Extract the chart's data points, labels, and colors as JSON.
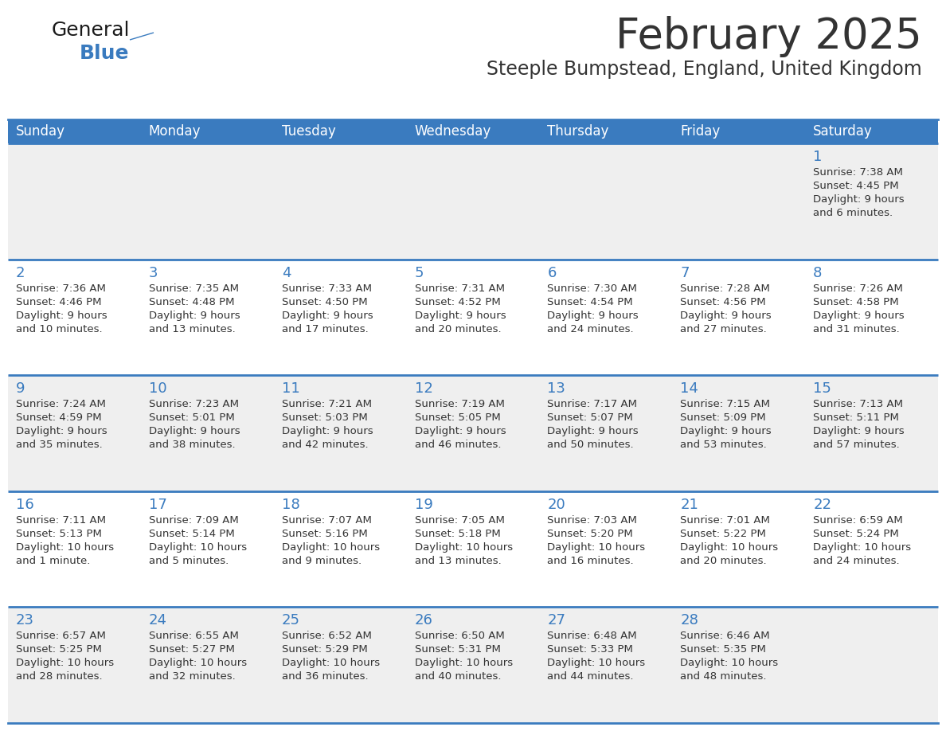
{
  "title": "February 2025",
  "subtitle": "Steeple Bumpstead, England, United Kingdom",
  "header_bg": "#3a7bbf",
  "header_text": "#ffffff",
  "cell_bg_odd": "#efefef",
  "cell_bg_even": "#ffffff",
  "separator_color": "#3a7bbf",
  "day_number_color": "#3a7bbf",
  "text_color": "#333333",
  "days_of_week": [
    "Sunday",
    "Monday",
    "Tuesday",
    "Wednesday",
    "Thursday",
    "Friday",
    "Saturday"
  ],
  "weeks": [
    [
      null,
      null,
      null,
      null,
      null,
      null,
      1
    ],
    [
      2,
      3,
      4,
      5,
      6,
      7,
      8
    ],
    [
      9,
      10,
      11,
      12,
      13,
      14,
      15
    ],
    [
      16,
      17,
      18,
      19,
      20,
      21,
      22
    ],
    [
      23,
      24,
      25,
      26,
      27,
      28,
      null
    ]
  ],
  "cell_data": {
    "1": {
      "sunrise": "7:38 AM",
      "sunset": "4:45 PM",
      "daylight": "9 hours\nand 6 minutes."
    },
    "2": {
      "sunrise": "7:36 AM",
      "sunset": "4:46 PM",
      "daylight": "9 hours\nand 10 minutes."
    },
    "3": {
      "sunrise": "7:35 AM",
      "sunset": "4:48 PM",
      "daylight": "9 hours\nand 13 minutes."
    },
    "4": {
      "sunrise": "7:33 AM",
      "sunset": "4:50 PM",
      "daylight": "9 hours\nand 17 minutes."
    },
    "5": {
      "sunrise": "7:31 AM",
      "sunset": "4:52 PM",
      "daylight": "9 hours\nand 20 minutes."
    },
    "6": {
      "sunrise": "7:30 AM",
      "sunset": "4:54 PM",
      "daylight": "9 hours\nand 24 minutes."
    },
    "7": {
      "sunrise": "7:28 AM",
      "sunset": "4:56 PM",
      "daylight": "9 hours\nand 27 minutes."
    },
    "8": {
      "sunrise": "7:26 AM",
      "sunset": "4:58 PM",
      "daylight": "9 hours\nand 31 minutes."
    },
    "9": {
      "sunrise": "7:24 AM",
      "sunset": "4:59 PM",
      "daylight": "9 hours\nand 35 minutes."
    },
    "10": {
      "sunrise": "7:23 AM",
      "sunset": "5:01 PM",
      "daylight": "9 hours\nand 38 minutes."
    },
    "11": {
      "sunrise": "7:21 AM",
      "sunset": "5:03 PM",
      "daylight": "9 hours\nand 42 minutes."
    },
    "12": {
      "sunrise": "7:19 AM",
      "sunset": "5:05 PM",
      "daylight": "9 hours\nand 46 minutes."
    },
    "13": {
      "sunrise": "7:17 AM",
      "sunset": "5:07 PM",
      "daylight": "9 hours\nand 50 minutes."
    },
    "14": {
      "sunrise": "7:15 AM",
      "sunset": "5:09 PM",
      "daylight": "9 hours\nand 53 minutes."
    },
    "15": {
      "sunrise": "7:13 AM",
      "sunset": "5:11 PM",
      "daylight": "9 hours\nand 57 minutes."
    },
    "16": {
      "sunrise": "7:11 AM",
      "sunset": "5:13 PM",
      "daylight": "10 hours\nand 1 minute."
    },
    "17": {
      "sunrise": "7:09 AM",
      "sunset": "5:14 PM",
      "daylight": "10 hours\nand 5 minutes."
    },
    "18": {
      "sunrise": "7:07 AM",
      "sunset": "5:16 PM",
      "daylight": "10 hours\nand 9 minutes."
    },
    "19": {
      "sunrise": "7:05 AM",
      "sunset": "5:18 PM",
      "daylight": "10 hours\nand 13 minutes."
    },
    "20": {
      "sunrise": "7:03 AM",
      "sunset": "5:20 PM",
      "daylight": "10 hours\nand 16 minutes."
    },
    "21": {
      "sunrise": "7:01 AM",
      "sunset": "5:22 PM",
      "daylight": "10 hours\nand 20 minutes."
    },
    "22": {
      "sunrise": "6:59 AM",
      "sunset": "5:24 PM",
      "daylight": "10 hours\nand 24 minutes."
    },
    "23": {
      "sunrise": "6:57 AM",
      "sunset": "5:25 PM",
      "daylight": "10 hours\nand 28 minutes."
    },
    "24": {
      "sunrise": "6:55 AM",
      "sunset": "5:27 PM",
      "daylight": "10 hours\nand 32 minutes."
    },
    "25": {
      "sunrise": "6:52 AM",
      "sunset": "5:29 PM",
      "daylight": "10 hours\nand 36 minutes."
    },
    "26": {
      "sunrise": "6:50 AM",
      "sunset": "5:31 PM",
      "daylight": "10 hours\nand 40 minutes."
    },
    "27": {
      "sunrise": "6:48 AM",
      "sunset": "5:33 PM",
      "daylight": "10 hours\nand 44 minutes."
    },
    "28": {
      "sunrise": "6:46 AM",
      "sunset": "5:35 PM",
      "daylight": "10 hours\nand 48 minutes."
    }
  },
  "logo_color_general": "#1a1a1a",
  "logo_color_blue": "#3a7bbf",
  "logo_triangle_color": "#3a7bbf"
}
